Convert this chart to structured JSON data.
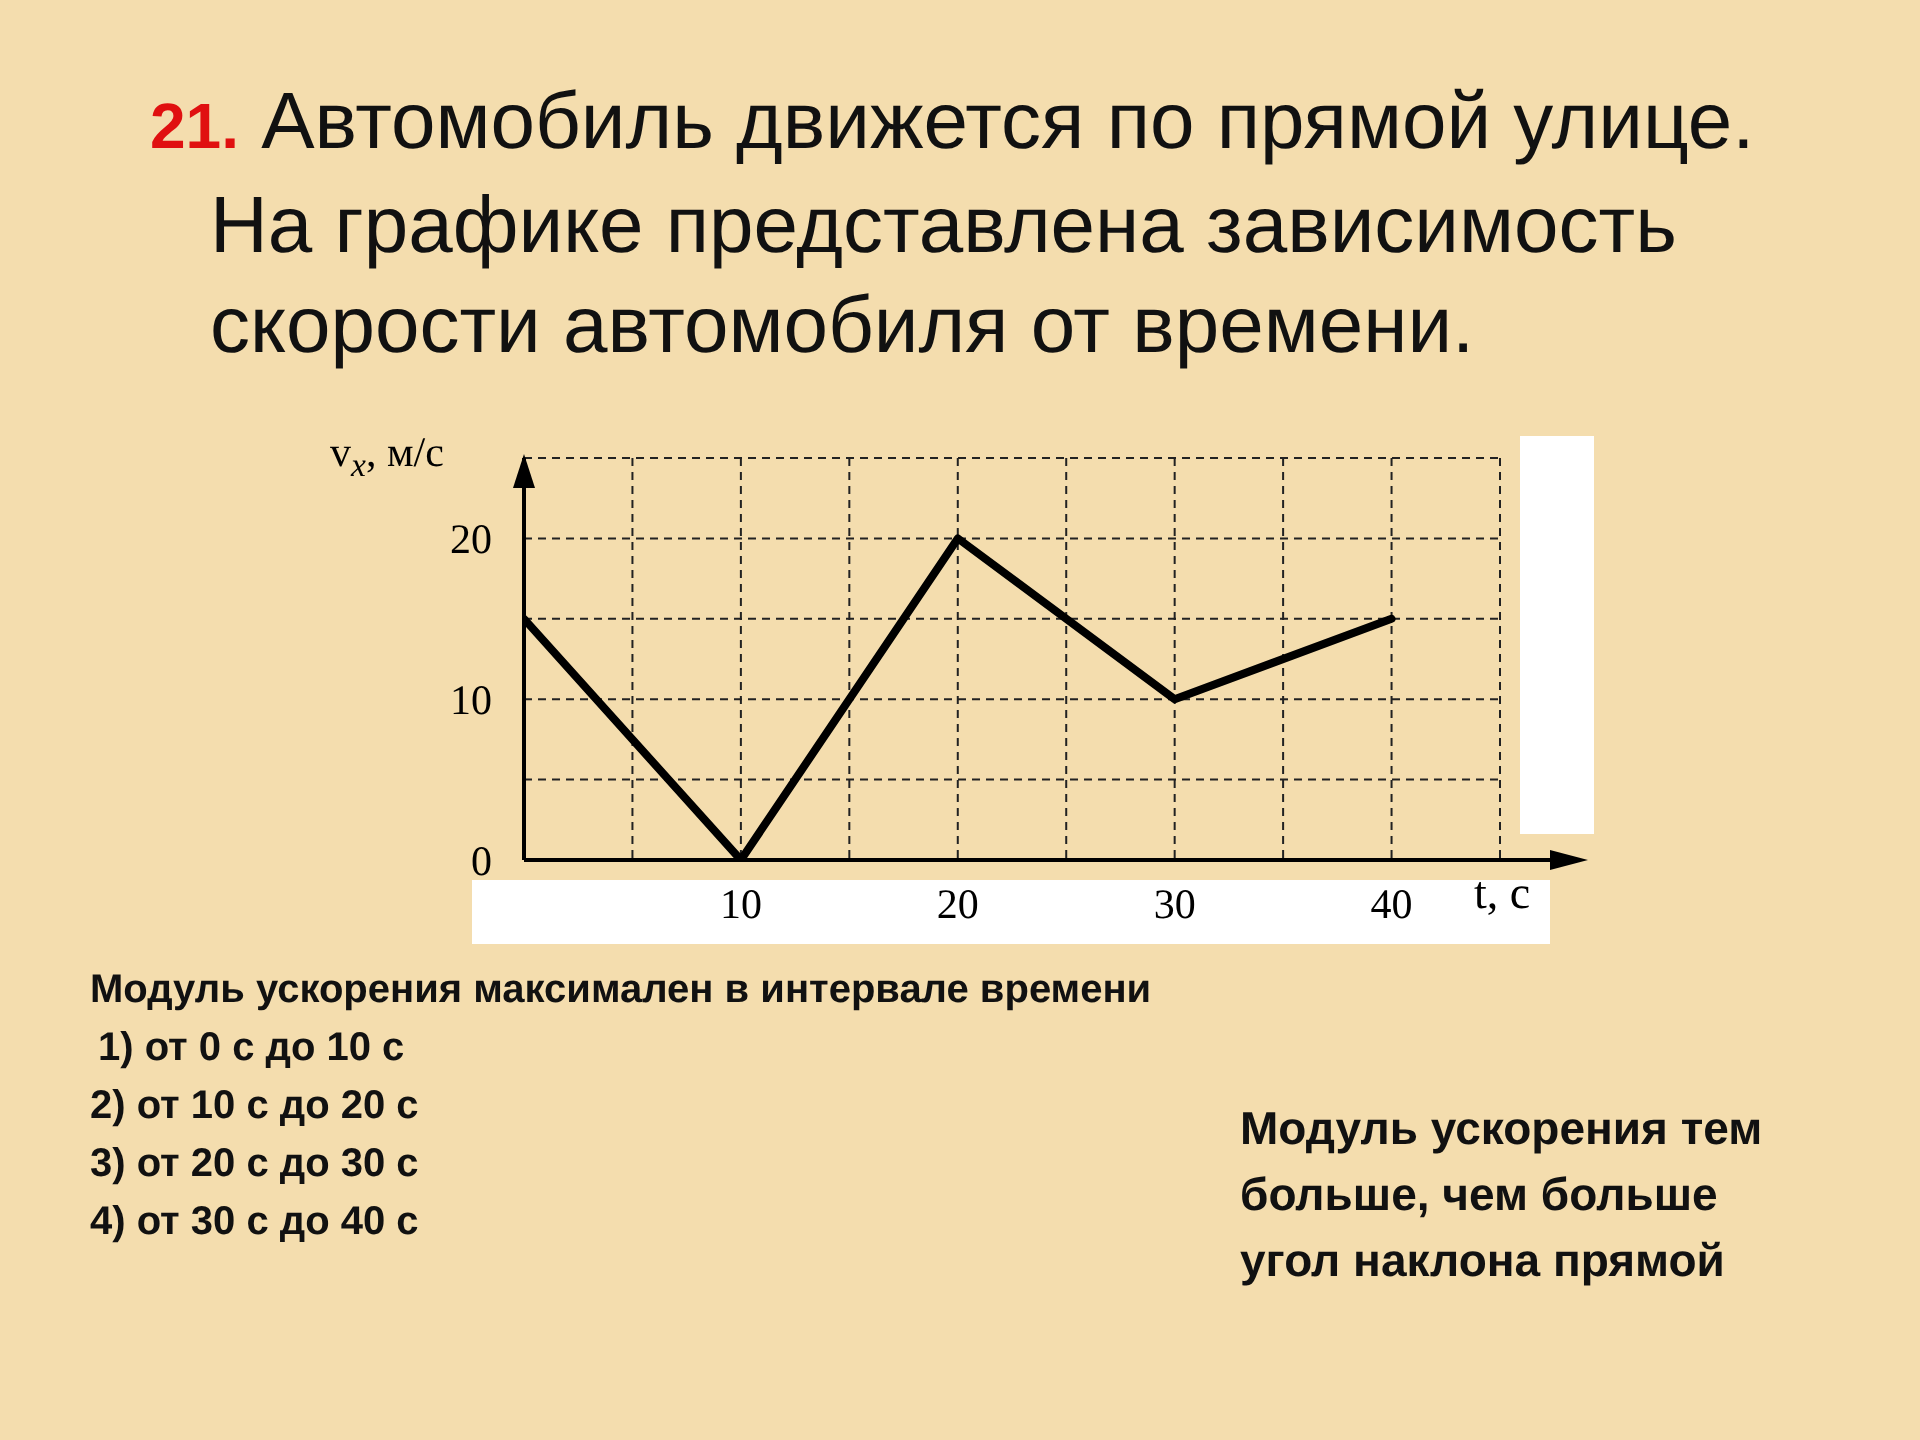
{
  "chart_data": {
    "type": "line",
    "title": "21. Автомобиль движется по прямой улице. На графике представлена зависимость скорости автомобиля от времени.",
    "xlabel": "t, с",
    "ylabel": "v$_{x}$, м/с",
    "x": [
      0,
      10,
      20,
      30,
      40
    ],
    "series": [
      {
        "color": "#000000",
        "values": [
          15,
          0,
          20,
          10,
          15
        ]
      }
    ],
    "xlim": [
      0,
      45
    ],
    "ylim": [
      0,
      25
    ],
    "xticks": [
      {
        "value": 0,
        "label": null
      },
      {
        "value": 5,
        "label": null
      },
      10,
      {
        "value": 15,
        "label": null
      },
      20,
      {
        "value": 25,
        "label": null
      },
      30,
      {
        "value": 35,
        "label": null
      },
      40,
      {
        "value": 45,
        "label": null
      }
    ],
    "yticks": [
      0,
      {
        "value": 5,
        "label": null
      },
      10,
      {
        "value": 15,
        "label": null
      },
      20,
      {
        "value": 25,
        "label": null
      }
    ],
    "grid": true,
    "marker": "none",
    "line_style": "solid",
    "annotations": [
      "Модуль ускорения максимален в интервале времени",
      "1) от 0 с до 10 с",
      "2) от 10 с до 20 с",
      "3) от 20 с до 30 с",
      "4) от 30 с до 40 с",
      "Модуль ускорения тем больше, чем больше угол наклона прямой"
    ]
  }
}
